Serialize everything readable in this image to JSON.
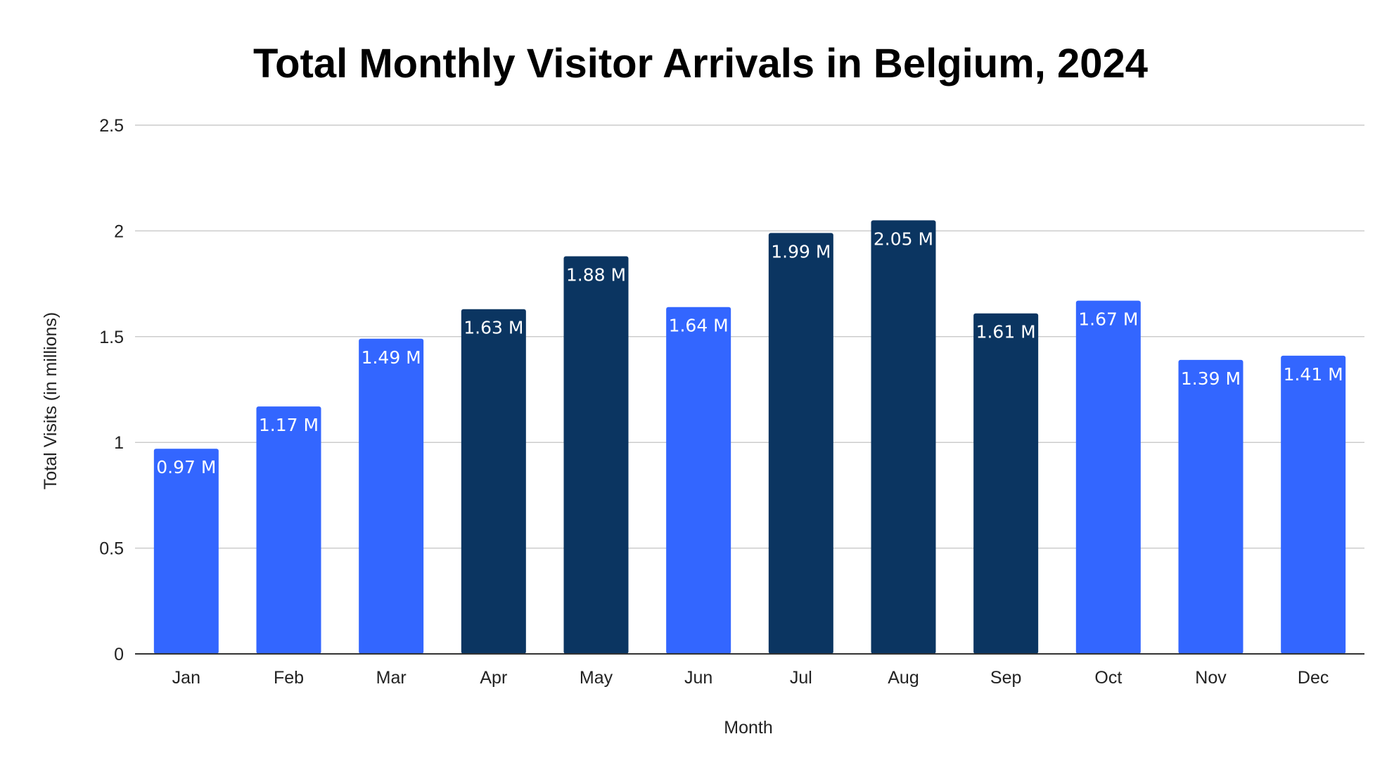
{
  "chart_data": {
    "type": "bar",
    "title": "Total Monthly Visitor Arrivals in Belgium, 2024",
    "xlabel": "Month",
    "ylabel": "Total Visits (in millions)",
    "categories": [
      "Jan",
      "Feb",
      "Mar",
      "Apr",
      "May",
      "Jun",
      "Jul",
      "Aug",
      "Sep",
      "Oct",
      "Nov",
      "Dec"
    ],
    "values": [
      0.97,
      1.17,
      1.49,
      1.63,
      1.88,
      1.64,
      1.99,
      2.05,
      1.61,
      1.67,
      1.39,
      1.41
    ],
    "data_labels": [
      "0.97 M",
      "1.17 M",
      "1.49 M",
      "1.63 M",
      "1.88 M",
      "1.64 M",
      "1.99 M",
      "2.05 M",
      "1.61 M",
      "1.67 M",
      "1.39 M",
      "1.41 M"
    ],
    "highlighted": [
      false,
      false,
      false,
      true,
      true,
      false,
      true,
      true,
      true,
      false,
      false,
      false
    ],
    "ylim": [
      0,
      2.5
    ],
    "yticks": [
      0,
      0.5,
      1,
      1.5,
      2,
      2.5
    ],
    "ytick_labels": [
      "0",
      "0.5",
      "1",
      "1.5",
      "2",
      "2.5"
    ],
    "grid": true,
    "legend": "none",
    "colors": {
      "bar": "#3366ff",
      "bar_highlight": "#0b3561",
      "label": "#ffffff"
    }
  }
}
